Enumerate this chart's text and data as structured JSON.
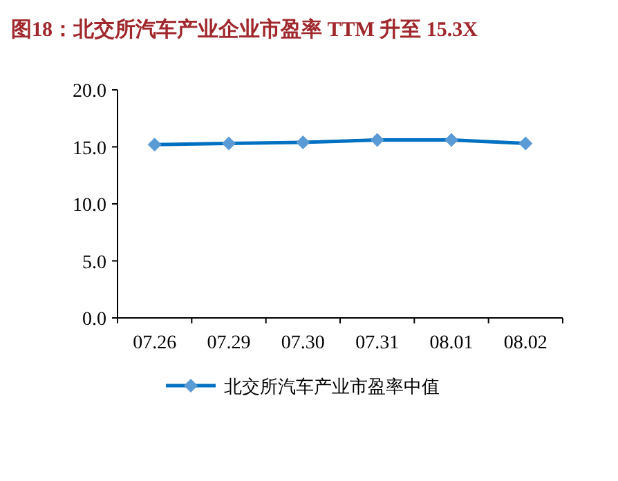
{
  "chart_data": {
    "type": "line",
    "title": "图18：北交所汽车产业企业市盈率 TTM 升至 15.3X",
    "categories": [
      "07.26",
      "07.29",
      "07.30",
      "07.31",
      "08.01",
      "08.02"
    ],
    "series": [
      {
        "name": "北交所汽车产业市盈率中值",
        "color": "#0070c0",
        "values": [
          15.2,
          15.3,
          15.4,
          15.6,
          15.6,
          15.3
        ]
      }
    ],
    "ylim": [
      0,
      20
    ],
    "yticks": [
      {
        "value": 0,
        "label": "0.0"
      },
      {
        "value": 5,
        "label": "5.0"
      },
      {
        "value": 10,
        "label": "10.0"
      },
      {
        "value": 15,
        "label": "15.0"
      },
      {
        "value": 20,
        "label": "20.0"
      }
    ],
    "marker": "diamond",
    "line_style": "solid",
    "legend": "bottom",
    "grid": false
  }
}
